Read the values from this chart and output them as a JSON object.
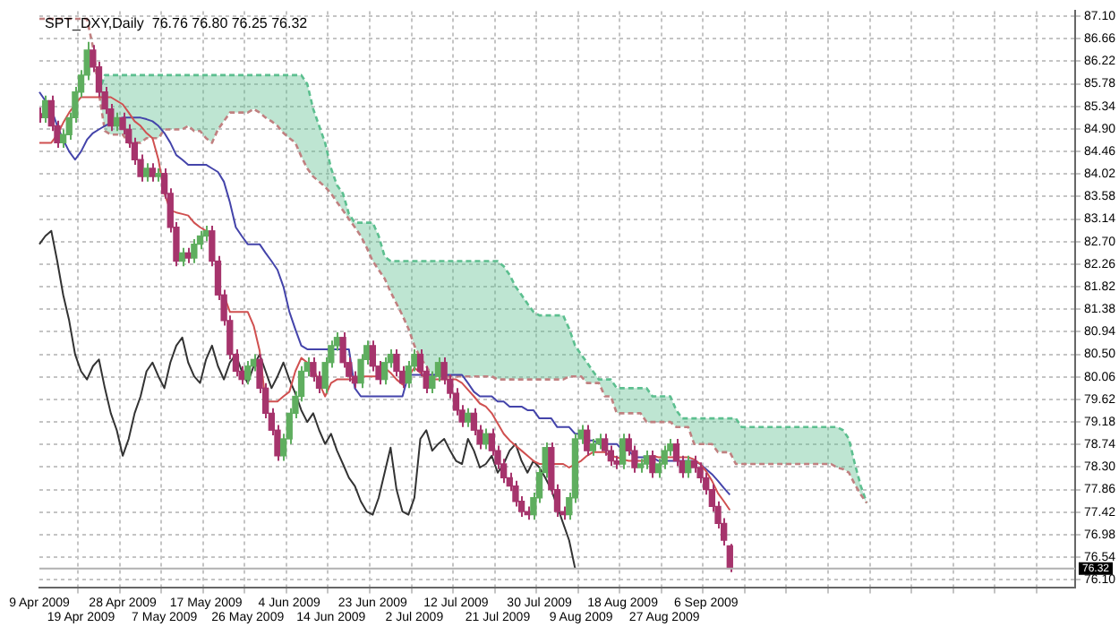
{
  "chart_data": {
    "type": "candlestick",
    "title": "SPT_DXY,Daily  76.76 76.80 76.25 76.32",
    "categories": [
      "9 Apr 2009",
      null,
      null,
      null,
      null,
      null,
      null,
      "19 Apr 2009",
      null,
      null,
      null,
      null,
      null,
      null,
      "28 Apr 2009",
      null,
      null,
      null,
      null,
      null,
      null,
      "7 May 2009",
      null,
      null,
      null,
      null,
      null,
      null,
      "17 May 2009",
      null,
      null,
      null,
      null,
      null,
      null,
      "26 May 2009",
      null,
      null,
      null,
      null,
      null,
      null,
      "4 Jun 2009",
      null,
      null,
      null,
      null,
      null,
      null,
      "14 Jun 2009",
      null,
      null,
      null,
      null,
      null,
      null,
      "23 Jun 2009",
      null,
      null,
      null,
      null,
      null,
      null,
      "2 Jul 2009",
      null,
      null,
      null,
      null,
      null,
      null,
      "12 Jul 2009",
      null,
      null,
      null,
      null,
      null,
      null,
      "21 Jul 2009",
      null,
      null,
      null,
      null,
      null,
      null,
      "30 Jul 2009",
      null,
      null,
      null,
      null,
      null,
      null,
      "9 Aug 2009",
      null,
      null,
      null,
      null,
      null,
      null,
      "18 Aug 2009",
      null,
      null,
      null,
      null,
      null,
      null,
      "27 Aug 2009",
      null,
      null,
      null,
      null,
      null,
      null,
      "6 Sep 2009",
      null,
      null,
      null,
      null,
      null,
      null,
      null,
      null,
      null,
      null,
      null,
      null,
      null,
      null,
      null,
      null,
      null,
      null,
      null,
      null,
      null,
      null,
      null,
      null,
      null,
      null,
      null,
      null,
      null,
      null,
      null,
      null,
      null,
      null,
      null,
      null,
      null,
      null,
      null,
      null,
      null,
      null,
      null,
      null,
      null,
      null,
      null,
      null,
      null,
      null,
      null,
      null,
      null,
      null,
      null,
      null,
      null,
      null,
      null,
      null,
      null,
      null
    ],
    "ohlc": [
      [
        85.2,
        85.32,
        85.02,
        85.12
      ],
      [
        85.12,
        85.55,
        85.02,
        85.45
      ],
      [
        85.45,
        85.55,
        84.86,
        84.96
      ],
      [
        84.96,
        85.06,
        84.53,
        84.63
      ],
      [
        84.63,
        84.89,
        84.53,
        84.79
      ],
      [
        84.79,
        85.22,
        84.69,
        85.12
      ],
      [
        85.12,
        85.72,
        85.02,
        85.62
      ],
      [
        85.62,
        86.05,
        85.52,
        85.95
      ],
      [
        85.95,
        86.6,
        85.85,
        86.44
      ],
      [
        86.44,
        86.54,
        86.01,
        86.11
      ],
      [
        86.11,
        86.21,
        85.52,
        85.62
      ],
      [
        85.62,
        85.72,
        85.19,
        85.29
      ],
      [
        85.29,
        85.39,
        84.86,
        84.96
      ],
      [
        84.96,
        85.22,
        84.86,
        85.12
      ],
      [
        85.12,
        85.22,
        84.79,
        84.89
      ],
      [
        84.89,
        84.99,
        84.53,
        84.63
      ],
      [
        84.63,
        84.73,
        84.2,
        84.3
      ],
      [
        84.3,
        84.4,
        83.87,
        83.97
      ],
      [
        83.97,
        84.23,
        83.87,
        84.13
      ],
      [
        84.13,
        84.23,
        83.87,
        83.97
      ],
      [
        83.97,
        84.13,
        83.87,
        84.03
      ],
      [
        84.03,
        84.13,
        83.54,
        83.64
      ],
      [
        83.64,
        83.74,
        82.88,
        82.98
      ],
      [
        82.98,
        83.08,
        82.22,
        82.32
      ],
      [
        82.32,
        82.58,
        82.22,
        82.48
      ],
      [
        82.48,
        82.58,
        82.28,
        82.38
      ],
      [
        82.38,
        82.75,
        82.28,
        82.65
      ],
      [
        82.65,
        82.91,
        82.55,
        82.81
      ],
      [
        82.81,
        83.01,
        82.71,
        82.91
      ],
      [
        82.91,
        83.01,
        82.22,
        82.32
      ],
      [
        82.32,
        82.42,
        81.56,
        81.66
      ],
      [
        81.66,
        81.76,
        81.06,
        81.16
      ],
      [
        81.16,
        81.26,
        80.4,
        80.5
      ],
      [
        80.5,
        80.6,
        80.07,
        80.17
      ],
      [
        80.17,
        80.27,
        79.91,
        80.01
      ],
      [
        80.01,
        80.37,
        79.91,
        80.27
      ],
      [
        80.27,
        80.5,
        80.17,
        80.4
      ],
      [
        80.4,
        80.5,
        79.74,
        79.84
      ],
      [
        79.84,
        79.94,
        79.25,
        79.35
      ],
      [
        79.35,
        79.45,
        78.92,
        79.02
      ],
      [
        79.02,
        79.12,
        78.42,
        78.52
      ],
      [
        78.52,
        78.95,
        78.42,
        78.85
      ],
      [
        78.85,
        79.45,
        78.75,
        79.35
      ],
      [
        79.35,
        79.78,
        79.25,
        79.68
      ],
      [
        79.68,
        80.27,
        79.58,
        80.17
      ],
      [
        80.17,
        80.44,
        80.07,
        80.34
      ],
      [
        80.34,
        80.44,
        79.97,
        80.07
      ],
      [
        80.07,
        80.17,
        79.74,
        79.84
      ],
      [
        79.84,
        80.44,
        79.74,
        80.34
      ],
      [
        80.34,
        80.77,
        80.24,
        80.67
      ],
      [
        80.67,
        80.93,
        80.57,
        80.83
      ],
      [
        80.83,
        80.93,
        80.24,
        80.34
      ],
      [
        80.34,
        80.44,
        79.97,
        80.07
      ],
      [
        80.07,
        80.17,
        79.84,
        79.94
      ],
      [
        79.94,
        80.5,
        79.84,
        80.4
      ],
      [
        80.4,
        80.77,
        80.3,
        80.67
      ],
      [
        80.67,
        80.77,
        80.17,
        80.27
      ],
      [
        80.27,
        80.37,
        79.91,
        80.01
      ],
      [
        80.01,
        80.44,
        79.91,
        80.34
      ],
      [
        80.34,
        80.6,
        80.24,
        80.5
      ],
      [
        80.5,
        80.6,
        80.07,
        80.17
      ],
      [
        80.17,
        80.27,
        79.84,
        79.94
      ],
      [
        79.94,
        80.37,
        79.84,
        80.27
      ],
      [
        80.27,
        80.6,
        80.17,
        80.5
      ],
      [
        80.5,
        80.6,
        80.07,
        80.17
      ],
      [
        80.17,
        80.27,
        79.74,
        79.84
      ],
      [
        79.84,
        80.17,
        79.74,
        80.07
      ],
      [
        80.07,
        80.44,
        79.97,
        80.34
      ],
      [
        80.34,
        80.44,
        79.91,
        80.01
      ],
      [
        80.01,
        80.11,
        79.64,
        79.74
      ],
      [
        79.74,
        79.84,
        79.31,
        79.41
      ],
      [
        79.41,
        79.51,
        79.08,
        79.18
      ],
      [
        79.18,
        79.45,
        79.08,
        79.35
      ],
      [
        79.35,
        79.45,
        78.92,
        79.02
      ],
      [
        79.02,
        79.12,
        78.65,
        78.75
      ],
      [
        78.75,
        79.05,
        78.65,
        78.95
      ],
      [
        78.95,
        79.05,
        78.52,
        78.62
      ],
      [
        78.62,
        78.72,
        78.26,
        78.36
      ],
      [
        78.36,
        78.46,
        77.99,
        78.09
      ],
      [
        78.09,
        78.19,
        77.83,
        77.93
      ],
      [
        77.93,
        78.03,
        77.53,
        77.63
      ],
      [
        77.63,
        77.73,
        77.33,
        77.43
      ],
      [
        77.43,
        77.53,
        77.27,
        77.37
      ],
      [
        77.37,
        77.8,
        77.27,
        77.7
      ],
      [
        77.7,
        78.29,
        77.6,
        78.19
      ],
      [
        78.19,
        78.78,
        78.09,
        78.68
      ],
      [
        78.68,
        78.78,
        77.76,
        77.86
      ],
      [
        77.86,
        77.96,
        77.33,
        77.43
      ],
      [
        77.43,
        77.53,
        77.27,
        77.37
      ],
      [
        77.37,
        77.8,
        77.27,
        77.7
      ],
      [
        77.7,
        78.95,
        77.6,
        78.85
      ],
      [
        78.85,
        79.12,
        78.75,
        79.02
      ],
      [
        79.02,
        79.12,
        78.52,
        78.62
      ],
      [
        78.62,
        78.85,
        78.52,
        78.75
      ],
      [
        78.75,
        78.95,
        78.65,
        78.85
      ],
      [
        78.85,
        78.95,
        78.52,
        78.62
      ],
      [
        78.62,
        78.72,
        78.32,
        78.42
      ],
      [
        78.42,
        78.52,
        78.26,
        78.36
      ],
      [
        78.36,
        78.95,
        78.26,
        78.85
      ],
      [
        78.85,
        78.95,
        78.52,
        78.62
      ],
      [
        78.62,
        78.72,
        78.19,
        78.29
      ],
      [
        78.29,
        78.46,
        78.19,
        78.36
      ],
      [
        78.36,
        78.62,
        78.26,
        78.52
      ],
      [
        78.52,
        78.62,
        78.09,
        78.19
      ],
      [
        78.19,
        78.46,
        78.09,
        78.36
      ],
      [
        78.36,
        78.72,
        78.26,
        78.62
      ],
      [
        78.62,
        78.85,
        78.52,
        78.75
      ],
      [
        78.75,
        78.85,
        78.32,
        78.42
      ],
      [
        78.42,
        78.52,
        78.09,
        78.19
      ],
      [
        78.19,
        78.52,
        78.09,
        78.42
      ],
      [
        78.42,
        78.52,
        78.19,
        78.29
      ],
      [
        78.29,
        78.39,
        77.99,
        78.09
      ],
      [
        78.09,
        78.19,
        77.76,
        77.86
      ],
      [
        77.86,
        77.96,
        77.43,
        77.53
      ],
      [
        77.53,
        77.63,
        77.1,
        77.2
      ],
      [
        77.2,
        77.3,
        76.77,
        76.87
      ],
      [
        76.76,
        76.8,
        76.25,
        76.32
      ],
      null,
      null,
      null,
      null,
      null,
      null,
      null,
      null,
      null,
      null,
      null,
      null,
      null,
      null,
      null,
      null,
      null,
      null,
      null,
      null,
      null,
      null,
      null,
      null,
      null,
      null,
      null,
      null,
      null,
      null,
      null,
      null,
      null,
      null,
      null,
      null,
      null,
      null,
      null,
      null,
      null,
      null,
      null,
      null,
      null,
      null,
      null,
      null,
      null,
      null,
      null,
      null,
      null,
      null,
      null,
      null,
      null,
      null
    ],
    "colors": [
      "#a6346c",
      "#5fae5f",
      "#a6346c",
      "#a6346c",
      "#5fae5f",
      "#5fae5f",
      "#5fae5f",
      "#5fae5f",
      "#5fae5f",
      "#a6346c",
      "#a6346c",
      "#a6346c",
      "#a6346c",
      "#5fae5f",
      "#a6346c",
      "#a6346c",
      "#a6346c",
      "#a6346c",
      "#5fae5f",
      "#a6346c",
      "#5fae5f",
      "#a6346c",
      "#a6346c",
      "#a6346c",
      "#5fae5f",
      "#a6346c",
      "#5fae5f",
      "#5fae5f",
      "#5fae5f",
      "#a6346c",
      "#a6346c",
      "#a6346c",
      "#a6346c",
      "#a6346c",
      "#a6346c",
      "#5fae5f",
      "#5fae5f",
      "#a6346c",
      "#a6346c",
      "#a6346c",
      "#a6346c",
      "#5fae5f",
      "#5fae5f",
      "#5fae5f",
      "#5fae5f",
      "#5fae5f",
      "#a6346c",
      "#a6346c",
      "#5fae5f",
      "#5fae5f",
      "#5fae5f",
      "#a6346c",
      "#a6346c",
      "#a6346c",
      "#5fae5f",
      "#5fae5f",
      "#a6346c",
      "#a6346c",
      "#5fae5f",
      "#5fae5f",
      "#a6346c",
      "#a6346c",
      "#5fae5f",
      "#5fae5f",
      "#a6346c",
      "#a6346c",
      "#5fae5f",
      "#5fae5f",
      "#a6346c",
      "#a6346c",
      "#a6346c",
      "#a6346c",
      "#5fae5f",
      "#a6346c",
      "#a6346c",
      "#5fae5f",
      "#a6346c",
      "#a6346c",
      "#a6346c",
      "#a6346c",
      "#a6346c",
      "#a6346c",
      "#a6346c",
      "#5fae5f",
      "#5fae5f",
      "#5fae5f",
      "#a6346c",
      "#a6346c",
      "#a6346c",
      "#5fae5f",
      "#5fae5f",
      "#5fae5f",
      "#a6346c",
      "#5fae5f",
      "#5fae5f",
      "#a6346c",
      "#a6346c",
      "#a6346c",
      "#5fae5f",
      "#a6346c",
      "#a6346c",
      "#5fae5f",
      "#5fae5f",
      "#a6346c",
      "#5fae5f",
      "#5fae5f",
      "#5fae5f",
      "#a6346c",
      "#a6346c",
      "#5fae5f",
      "#a6346c",
      "#a6346c",
      "#a6346c",
      "#a6346c",
      "#a6346c",
      "#a6346c",
      "#a6346c",
      null,
      null,
      null,
      null,
      null,
      null,
      null,
      null,
      null,
      null,
      null,
      null,
      null,
      null,
      null,
      null,
      null,
      null,
      null,
      null,
      null,
      null,
      null,
      null,
      null,
      null,
      null,
      null,
      null,
      null,
      null,
      null,
      null,
      null,
      null,
      null,
      null,
      null,
      null,
      null,
      null,
      null,
      null,
      null,
      null,
      null,
      null,
      null,
      null,
      null,
      null,
      null,
      null,
      null,
      null,
      null,
      null,
      null
    ],
    "series": [
      {
        "type": "line",
        "color": "#d05050",
        "values": [
          84.63,
          84.63,
          84.63,
          84.79,
          85.02,
          85.22,
          85.38,
          85.52,
          85.52,
          85.52,
          85.52,
          85.52,
          85.52,
          85.45,
          85.38,
          85.22,
          85.05,
          84.96,
          84.82,
          84.72,
          84.3,
          83.64,
          83.31,
          83.27,
          83.24,
          83.21,
          83.07,
          82.98,
          82.91,
          null,
          null,
          81.66,
          81.33,
          81.33,
          81.33,
          81.33,
          81.06,
          80.57,
          79.58,
          79.58,
          79.58,
          79.68,
          79.77,
          80.17,
          80.43,
          80.34,
          80.24,
          79.94,
          79.68,
          79.94,
          80.01,
          80.01,
          80.01,
          80.01,
          80.07,
          80.07,
          80.07,
          80.07,
          80.24,
          80.14,
          80.01,
          79.91,
          80.07,
          80.24,
          80.14,
          80.01,
          80.01,
          80.01,
          80.01,
          80.01,
          80.01,
          79.94,
          79.81,
          79.68,
          79.54,
          79.48,
          79.35,
          79.15,
          78.95,
          78.82,
          78.72,
          78.62,
          78.52,
          78.42,
          78.36,
          78.36,
          78.36,
          78.36,
          78.36,
          78.29,
          78.36,
          78.42,
          78.52,
          78.59,
          78.59,
          78.59,
          78.52,
          78.49,
          78.45,
          78.42,
          78.42,
          78.42,
          78.42,
          78.52,
          78.49,
          78.49,
          78.49,
          78.49,
          78.49,
          78.49,
          78.45,
          78.36,
          78.22,
          78.03,
          77.79,
          77.63,
          77.46,
          null,
          null,
          null,
          null,
          null,
          null,
          null,
          null,
          null,
          null,
          null,
          null,
          null,
          null,
          null,
          null,
          null,
          null,
          null,
          null,
          null,
          null,
          null,
          null,
          null,
          null,
          null,
          null,
          null,
          null,
          null,
          null,
          null,
          null,
          null,
          null,
          null,
          null,
          null,
          null,
          null,
          null,
          null,
          null,
          null,
          null,
          null,
          null,
          null,
          null,
          null,
          null,
          null,
          null,
          null,
          null,
          null,
          null
        ]
      },
      {
        "type": "line",
        "color": "#4444aa",
        "values": [
          85.62,
          85.45,
          85.29,
          84.96,
          84.69,
          84.46,
          84.3,
          84.46,
          84.69,
          84.82,
          84.89,
          84.96,
          85.02,
          85.09,
          85.12,
          85.12,
          85.12,
          85.12,
          85.09,
          85.05,
          84.96,
          84.82,
          84.63,
          84.39,
          84.3,
          84.2,
          84.2,
          84.2,
          84.2,
          84.13,
          84.06,
          83.87,
          83.47,
          82.98,
          82.81,
          82.65,
          82.65,
          82.65,
          82.48,
          82.32,
          82.15,
          81.82,
          81.33,
          80.99,
          80.67,
          80.6,
          80.6,
          80.6,
          80.6,
          80.6,
          80.6,
          80.6,
          80.6,
          79.84,
          79.68,
          79.68,
          79.68,
          79.68,
          79.68,
          79.68,
          79.68,
          79.68,
          80.1,
          80.1,
          80.1,
          80.1,
          80.1,
          80.1,
          80.1,
          80.1,
          80.1,
          80.1,
          79.94,
          79.77,
          79.68,
          79.68,
          79.68,
          79.58,
          79.58,
          79.48,
          79.48,
          79.48,
          79.41,
          79.41,
          79.25,
          79.25,
          79.25,
          79.08,
          79.08,
          79.08,
          78.95,
          78.95,
          78.82,
          78.82,
          78.75,
          78.75,
          78.75,
          78.75,
          78.62,
          78.62,
          78.49,
          78.49,
          78.49,
          78.49,
          78.42,
          78.42,
          78.42,
          78.42,
          78.42,
          78.42,
          78.42,
          78.36,
          78.26,
          78.16,
          78.03,
          77.89,
          77.76,
          null,
          null,
          null,
          null,
          null,
          null,
          null,
          null,
          null,
          null,
          null,
          null,
          null,
          null,
          null,
          null,
          null,
          null,
          null,
          null,
          null,
          null,
          null,
          null,
          null,
          null,
          null,
          null,
          null,
          null,
          null,
          null,
          null,
          null,
          null,
          null,
          null,
          null,
          null,
          null,
          null,
          null,
          null,
          null,
          null,
          null,
          null,
          null,
          null,
          null,
          null,
          null,
          null,
          null,
          null,
          null,
          null,
          null
        ]
      },
      {
        "type": "line",
        "color": "#333333",
        "values": [
          82.65,
          82.81,
          82.91,
          82.32,
          81.66,
          81.16,
          80.5,
          80.17,
          80.01,
          80.27,
          80.4,
          79.84,
          79.35,
          79.02,
          78.52,
          78.85,
          79.35,
          79.68,
          80.17,
          80.34,
          80.07,
          79.84,
          80.34,
          80.67,
          80.83,
          80.34,
          80.07,
          79.94,
          80.4,
          80.67,
          80.27,
          80.01,
          80.34,
          80.5,
          80.17,
          79.94,
          80.27,
          80.5,
          80.17,
          79.84,
          80.07,
          80.34,
          80.01,
          79.74,
          79.41,
          79.18,
          79.35,
          79.02,
          78.75,
          78.95,
          78.62,
          78.36,
          78.09,
          77.93,
          77.63,
          77.43,
          77.37,
          77.7,
          78.19,
          78.68,
          77.86,
          77.43,
          77.37,
          77.7,
          78.85,
          79.02,
          78.62,
          78.75,
          78.85,
          78.62,
          78.42,
          78.36,
          78.85,
          78.62,
          78.29,
          78.36,
          78.52,
          78.19,
          78.36,
          78.62,
          78.75,
          78.42,
          78.19,
          78.42,
          78.29,
          78.09,
          77.86,
          77.53,
          77.2,
          76.87,
          76.32,
          null,
          null,
          null,
          null,
          null,
          null,
          null,
          null,
          null,
          null,
          null,
          null,
          null,
          null,
          null,
          null,
          null,
          null,
          null,
          null,
          null,
          null,
          null,
          null,
          null,
          null,
          null,
          null,
          null,
          null,
          null,
          null,
          null,
          null,
          null,
          null,
          null,
          null,
          null,
          null,
          null,
          null,
          null,
          null,
          null,
          null,
          null,
          null,
          null,
          null,
          null,
          null,
          null,
          null,
          null,
          null,
          null,
          null,
          null,
          null,
          null,
          null,
          null,
          null,
          null,
          null,
          null,
          null,
          null,
          null,
          null,
          null,
          null,
          null,
          null,
          null,
          null,
          null,
          null,
          null,
          null,
          null,
          null,
          null
        ]
      },
      {
        "type": "line",
        "color": "#c08080",
        "line_style": "dotted",
        "values": [
          87.05,
          87.05,
          87.05,
          87.05,
          87.05,
          87.05,
          87.05,
          87.05,
          87.05,
          86.5,
          85.6,
          84.86,
          84.79,
          84.79,
          84.79,
          84.63,
          84.63,
          84.63,
          84.72,
          84.72,
          84.72,
          84.89,
          84.89,
          84.89,
          84.89,
          84.96,
          84.86,
          84.86,
          84.72,
          84.63,
          84.89,
          85.05,
          85.22,
          85.22,
          85.22,
          85.22,
          85.29,
          85.22,
          85.12,
          85.05,
          84.96,
          84.82,
          84.72,
          84.63,
          84.36,
          84.13,
          83.97,
          83.87,
          83.77,
          83.64,
          83.47,
          83.31,
          83.14,
          82.98,
          82.81,
          82.58,
          82.32,
          82.15,
          81.98,
          81.72,
          81.49,
          81.26,
          81.0,
          80.67,
          80.43,
          80.27,
          80.07,
          80.07,
          80.07,
          80.07,
          80.07,
          80.07,
          80.07,
          80.07,
          80.07,
          80.07,
          80.07,
          80.01,
          80.01,
          80.01,
          80.01,
          80.01,
          80.01,
          80.01,
          80.01,
          80.01,
          80.01,
          80.01,
          80.01,
          80.07,
          80.07,
          80.07,
          79.94,
          79.94,
          79.94,
          79.68,
          79.68,
          79.35,
          79.35,
          79.35,
          79.35,
          79.35,
          79.18,
          79.18,
          79.18,
          79.18,
          79.18,
          79.08,
          79.08,
          79.08,
          78.75,
          78.75,
          78.75,
          78.75,
          78.59,
          78.59,
          78.59,
          78.36,
          78.36,
          78.36,
          78.36,
          78.36,
          78.36,
          78.36,
          78.36,
          78.36,
          78.36,
          78.36,
          78.36,
          78.36,
          78.36,
          78.36,
          78.36,
          78.36,
          78.29,
          78.26,
          78.19,
          77.96,
          77.76,
          77.6,
          null,
          null,
          null,
          null,
          null,
          null,
          null,
          null,
          null,
          null,
          null,
          null,
          null,
          null,
          null,
          null,
          null,
          null,
          null,
          null,
          null,
          null,
          null,
          null,
          null,
          null,
          null,
          null,
          null,
          null,
          null,
          null,
          null,
          null,
          null
        ]
      },
      {
        "type": "area",
        "color": "#5cbf8f",
        "line_style": "dotted",
        "values": [
          null,
          null,
          null,
          null,
          null,
          null,
          null,
          null,
          null,
          null,
          85.6,
          85.95,
          85.95,
          85.95,
          85.95,
          85.95,
          85.95,
          85.95,
          85.95,
          85.95,
          85.95,
          85.95,
          85.95,
          85.95,
          85.95,
          85.95,
          85.95,
          85.95,
          85.95,
          85.95,
          85.95,
          85.95,
          85.95,
          85.95,
          85.95,
          85.95,
          85.95,
          85.95,
          85.95,
          85.95,
          85.95,
          85.95,
          85.95,
          85.95,
          85.95,
          85.78,
          85.29,
          84.96,
          84.63,
          84.13,
          83.8,
          83.64,
          83.24,
          83.07,
          83.07,
          83.07,
          83.07,
          82.81,
          82.41,
          82.32,
          82.32,
          82.32,
          82.32,
          82.32,
          82.32,
          82.32,
          82.32,
          82.32,
          82.32,
          82.32,
          82.32,
          82.32,
          82.32,
          82.32,
          82.32,
          82.32,
          82.32,
          82.32,
          82.22,
          82.05,
          81.82,
          81.66,
          81.49,
          81.33,
          81.26,
          81.26,
          81.26,
          81.26,
          81.26,
          81.0,
          80.67,
          80.5,
          80.34,
          80.17,
          80.01,
          80.01,
          80.01,
          79.84,
          79.84,
          79.84,
          79.84,
          79.84,
          79.84,
          79.68,
          79.68,
          79.68,
          79.68,
          79.41,
          79.25,
          79.25,
          79.25,
          79.25,
          79.25,
          79.25,
          79.25,
          79.25,
          79.25,
          79.25,
          79.08,
          79.08,
          79.08,
          79.08,
          79.08,
          79.08,
          79.08,
          79.08,
          79.08,
          79.08,
          79.08,
          79.08,
          79.08,
          79.08,
          79.08,
          79.08,
          79.08,
          79.02,
          78.85,
          78.36,
          77.93,
          77.6,
          null,
          null,
          null,
          null,
          null,
          null,
          null,
          null,
          null,
          null,
          null,
          null,
          null,
          null,
          null,
          null,
          null,
          null,
          null,
          null,
          null,
          null,
          null,
          null,
          null,
          null,
          null,
          null,
          null,
          null,
          null,
          null,
          null,
          null,
          null
        ]
      }
    ],
    "ylim": [
      75.94,
      87.2
    ],
    "yticks": [
      {
        "value": 87.1,
        "label": "87.10"
      },
      {
        "value": 86.66,
        "label": "86.66"
      },
      {
        "value": 86.22,
        "label": "86.22"
      },
      {
        "value": 85.78,
        "label": "85.78"
      },
      {
        "value": 85.34,
        "label": "85.34"
      },
      {
        "value": 84.9,
        "label": "84.90"
      },
      {
        "value": 84.46,
        "label": "84.46"
      },
      {
        "value": 84.02,
        "label": "84.02"
      },
      {
        "value": 83.58,
        "label": "83.58"
      },
      {
        "value": 83.14,
        "label": "83.14"
      },
      {
        "value": 82.7,
        "label": "82.70"
      },
      {
        "value": 82.26,
        "label": "82.26"
      },
      {
        "value": 81.82,
        "label": "81.82"
      },
      {
        "value": 81.38,
        "label": "81.38"
      },
      {
        "value": 80.94,
        "label": "80.94"
      },
      {
        "value": 80.5,
        "label": "80.50"
      },
      {
        "value": 80.06,
        "label": "80.06"
      },
      {
        "value": 79.62,
        "label": "79.62"
      },
      {
        "value": 79.18,
        "label": "79.18"
      },
      {
        "value": 78.74,
        "label": "78.74"
      },
      {
        "value": 78.3,
        "label": "78.30"
      },
      {
        "value": 77.86,
        "label": "77.86"
      },
      {
        "value": 77.42,
        "label": "77.42"
      },
      {
        "value": 76.98,
        "label": "76.98"
      },
      {
        "value": 76.54,
        "label": "76.54"
      },
      {
        "value": 76.1,
        "label": "76.10"
      }
    ],
    "grid": true,
    "ref_lines": [
      {
        "axis": "y",
        "value": 76.32,
        "label": "76.32",
        "color": "#b0b0b0"
      }
    ]
  }
}
